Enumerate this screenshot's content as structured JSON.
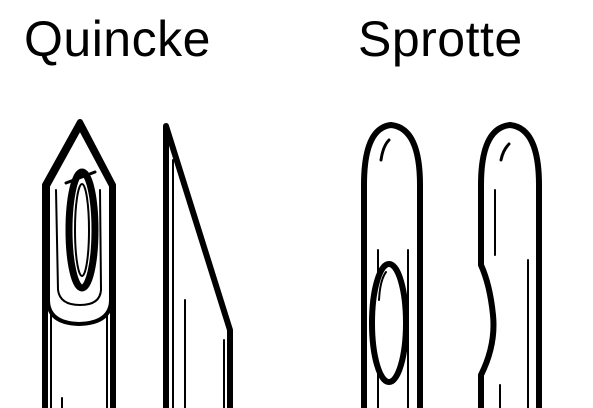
{
  "labels": {
    "left": "Quincke",
    "right": "Sprotte"
  },
  "colors": {
    "stroke": "#000000",
    "background": "#ffffff"
  },
  "icons": {
    "quincke_front": "quincke-needle-front-icon",
    "quincke_side": "quincke-needle-side-icon",
    "sprotte_front": "sprotte-needle-front-icon",
    "sprotte_side": "sprotte-needle-side-icon"
  }
}
